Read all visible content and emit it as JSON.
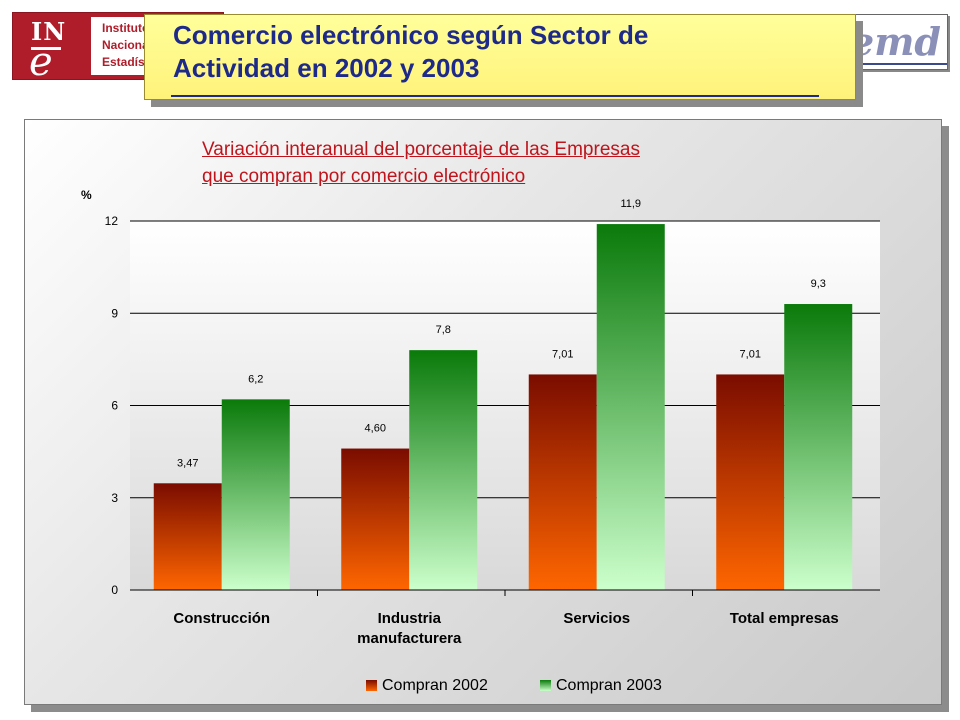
{
  "header": {
    "title_line1": "Comercio electrónico según Sector de",
    "title_line2": "Actividad en 2002 y 2003"
  },
  "ine_logo": {
    "mark_top": "IN",
    "mark_bottom": "e",
    "text_line1": "Instituto",
    "text_line2": "Nacional",
    "text_line3": "Estadística"
  },
  "right_logo": {
    "text": "cemd"
  },
  "chart_data": {
    "type": "bar",
    "title_line1": "Variación interanual del porcentaje de las Empresas",
    "title_line2": "que compran por comercio electrónico",
    "ylabel": "%",
    "xlabel": "",
    "categories": [
      [
        "Construcción"
      ],
      [
        "Industria",
        "manufacturera"
      ],
      [
        "Servicios"
      ],
      [
        "Total empresas"
      ]
    ],
    "series": [
      {
        "name": "Compran 2002",
        "values": [
          3.47,
          4.6,
          7.01,
          7.01
        ],
        "labels": [
          "3,47",
          "4,60",
          "7,01",
          "7,01"
        ],
        "color_top": "#7a0c00",
        "color_bottom": "#ff6600"
      },
      {
        "name": "Compran 2003",
        "values": [
          6.2,
          7.8,
          11.9,
          9.3
        ],
        "labels": [
          "6,2",
          "7,8",
          "11,9",
          "9,3"
        ],
        "color_top": "#0a7a0a",
        "color_bottom": "#ccffcc"
      }
    ],
    "ylim": [
      0,
      12
    ],
    "yticks": [
      0,
      3,
      6,
      9,
      12
    ],
    "grid": true,
    "legend_position": "bottom"
  }
}
